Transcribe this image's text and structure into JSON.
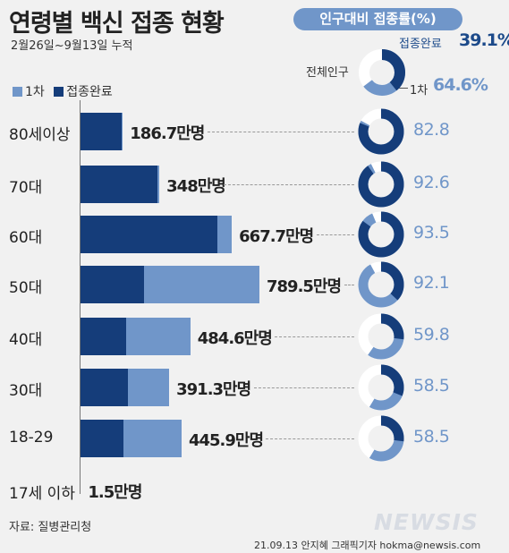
{
  "header": {
    "title": "연령별 백신 접종 현황",
    "subtitle": "2월26일~9월13일 누적",
    "pill": "인구대비 접종률(%)"
  },
  "legend": {
    "first": "1차",
    "complete": "접종완료"
  },
  "overall": {
    "complete_label": "접종완료",
    "complete_value": "39.1%",
    "total_label": "전체인구",
    "first_label": "1차",
    "first_value": "64.6%"
  },
  "colors": {
    "first": "#7096c9",
    "complete": "#153d7a",
    "remaining": "#ffffff"
  },
  "chart_data": {
    "type": "bar",
    "orientation": "horizontal",
    "unit": "만명",
    "categories": [
      "80세이상",
      "70대",
      "60대",
      "50대",
      "40대",
      "30대",
      "18-29",
      "17세 이하"
    ],
    "total_labels": [
      "186.7만명",
      "348만명",
      "667.7만명",
      "789.5만명",
      "484.6만명",
      "391.3만명",
      "445.9만명",
      "1.5만명"
    ],
    "series": [
      {
        "name": "1차",
        "values": [
          186.7,
          348,
          667.7,
          789.5,
          484.6,
          391.3,
          445.9,
          1.5
        ]
      },
      {
        "name": "접종완료",
        "values": [
          183,
          340,
          605,
          280,
          200,
          208,
          190,
          0.5
        ]
      }
    ],
    "rate_labels": [
      "82.8",
      "92.6",
      "93.5",
      "92.1",
      "59.8",
      "58.5",
      "58.5",
      ""
    ],
    "first_rate": [
      82.8,
      92.6,
      93.5,
      92.1,
      59.8,
      58.5,
      58.5,
      null
    ],
    "complete_rate": [
      81,
      90,
      85,
      37,
      27,
      31,
      27,
      null
    ],
    "overall_rate": {
      "first": 64.6,
      "complete": 39.1
    }
  },
  "footer": {
    "source": "자료: 질병관리청",
    "credit": "21.09.13 안지혜 그래픽기자 hokma@newsis.com",
    "logo": "NEWSIS"
  }
}
